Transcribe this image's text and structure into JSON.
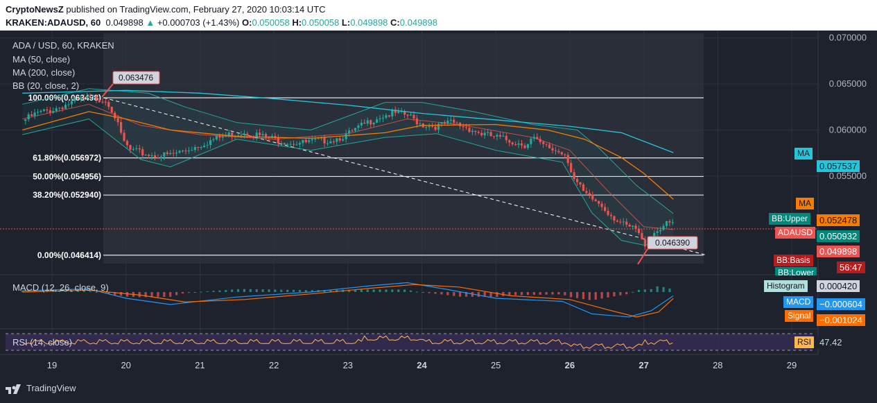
{
  "header": {
    "publisher": "CryptoNewsZ",
    "published_text": "published on TradingView.com, February 27, 2020 10:03:14 UTC",
    "symbol": "KRAKEN:ADAUSD, 60",
    "last": "0.049898",
    "change_arrow": "▲",
    "change": "+0.000703 (+1.43%)",
    "o_label": "O:",
    "o_value": "0.050058",
    "h_label": "H:",
    "h_value": "0.050058",
    "l_label": "L:",
    "l_value": "0.049898",
    "c_label": "C:",
    "c_value": "0.049898"
  },
  "legend": {
    "title": "ADA / USD, 60, KRAKEN",
    "ma50": "MA (50, close)",
    "ma200": "MA (200, close)",
    "bb": "BB (20, close, 2)",
    "macd": "MACD (12, 26, close, 9)",
    "rsi": "RSI (14, close)"
  },
  "price_axis": {
    "ticks": [
      "0.070000",
      "0.065000",
      "0.060000",
      "0.055000"
    ],
    "tick_values": [
      0.07,
      0.065,
      0.06,
      0.055
    ]
  },
  "fib_levels": [
    {
      "label": "100.00%(0.063498)",
      "value": 0.063498
    },
    {
      "label": "61.80%(0.056972)",
      "value": 0.056972
    },
    {
      "label": "50.00%(0.054956)",
      "value": 0.054956
    },
    {
      "label": "38.20%(0.052940)",
      "value": 0.05294
    },
    {
      "label": "0.00%(0.046414)",
      "value": 0.046414
    }
  ],
  "callouts": {
    "high": "0.063476",
    "low": "0.046390"
  },
  "right_tags": {
    "ma200_label": "MA",
    "ma200_value": "0.057537",
    "ma50_label": "MA",
    "ma50_value": "0.052478",
    "bb_upper_label": "BB:Upper",
    "bb_upper_value": "0.050932",
    "adausd_label": "ADAUSD",
    "adausd_value": "0.049898",
    "countdown": "56:47",
    "bb_basis_label": "BB:Basis",
    "bb_lower_label": "BB:Lower",
    "histogram_label": "Histogram",
    "histogram_value": "0.000420",
    "macd_label": "MACD",
    "macd_value": "−0.000604",
    "signal_label": "Signal",
    "signal_value": "−0.001024",
    "rsi_label": "RSI",
    "rsi_value": "47.42"
  },
  "time_axis": {
    "labels": [
      "19",
      "20",
      "21",
      "22",
      "23",
      "24",
      "25",
      "26",
      "27",
      "28",
      "29"
    ],
    "bold": [
      "24",
      "26",
      "27"
    ]
  },
  "footer": {
    "brand": "TradingView"
  },
  "colors": {
    "up": "#26a69a",
    "down": "#ef5350",
    "ma50": "#f57c00",
    "ma200": "#26c6da",
    "bb": "#26a69a",
    "bb_basis": "#ef5350",
    "macd": "#2196f3",
    "signal": "#ff6d00",
    "rsi": "#ffb74d"
  },
  "chart_data": {
    "type": "candlestick",
    "symbol": "ADA / USD",
    "interval": "60",
    "exchange": "KRAKEN",
    "ylim": [
      0.0455,
      0.0705
    ],
    "x_days": [
      19,
      20,
      21,
      22,
      23,
      24,
      25,
      26,
      27,
      28,
      29
    ],
    "close_path": [
      [
        18.6,
        0.061
      ],
      [
        18.8,
        0.0618
      ],
      [
        19.0,
        0.0622
      ],
      [
        19.2,
        0.0628
      ],
      [
        19.4,
        0.0633
      ],
      [
        19.6,
        0.0635
      ],
      [
        19.75,
        0.0632
      ],
      [
        19.85,
        0.0615
      ],
      [
        19.95,
        0.059
      ],
      [
        20.05,
        0.0578
      ],
      [
        20.2,
        0.0575
      ],
      [
        20.4,
        0.0572
      ],
      [
        20.6,
        0.0573
      ],
      [
        20.8,
        0.0578
      ],
      [
        21.0,
        0.0584
      ],
      [
        21.2,
        0.059
      ],
      [
        21.4,
        0.0595
      ],
      [
        21.6,
        0.0598
      ],
      [
        21.8,
        0.0594
      ],
      [
        22.0,
        0.059
      ],
      [
        22.2,
        0.0587
      ],
      [
        22.4,
        0.0586
      ],
      [
        22.6,
        0.0588
      ],
      [
        22.8,
        0.059
      ],
      [
        23.0,
        0.0595
      ],
      [
        23.2,
        0.0605
      ],
      [
        23.4,
        0.0614
      ],
      [
        23.6,
        0.0618
      ],
      [
        23.8,
        0.0616
      ],
      [
        24.0,
        0.0606
      ],
      [
        24.2,
        0.0604
      ],
      [
        24.4,
        0.0608
      ],
      [
        24.6,
        0.0603
      ],
      [
        24.8,
        0.0596
      ],
      [
        25.0,
        0.0592
      ],
      [
        25.2,
        0.0588
      ],
      [
        25.4,
        0.0584
      ],
      [
        25.5,
        0.0592
      ],
      [
        25.6,
        0.0584
      ],
      [
        25.8,
        0.0578
      ],
      [
        25.95,
        0.0574
      ],
      [
        26.05,
        0.0548
      ],
      [
        26.2,
        0.053
      ],
      [
        26.4,
        0.052
      ],
      [
        26.6,
        0.0505
      ],
      [
        26.75,
        0.0495
      ],
      [
        26.9,
        0.0492
      ],
      [
        27.0,
        0.0475
      ],
      [
        27.1,
        0.0486
      ],
      [
        27.25,
        0.0496
      ],
      [
        27.4,
        0.0499
      ]
    ],
    "ma200": [
      [
        18.6,
        0.064
      ],
      [
        20.0,
        0.0643
      ],
      [
        21.0,
        0.064
      ],
      [
        22.0,
        0.0634
      ],
      [
        23.0,
        0.0627
      ],
      [
        24.0,
        0.0618
      ],
      [
        25.0,
        0.0611
      ],
      [
        26.0,
        0.0604
      ],
      [
        26.7,
        0.0597
      ],
      [
        27.4,
        0.05754
      ]
    ],
    "ma50": [
      [
        18.6,
        0.06
      ],
      [
        19.5,
        0.062
      ],
      [
        20.0,
        0.0612
      ],
      [
        20.6,
        0.06
      ],
      [
        21.5,
        0.0593
      ],
      [
        22.5,
        0.0591
      ],
      [
        23.5,
        0.0597
      ],
      [
        24.0,
        0.0605
      ],
      [
        25.0,
        0.0606
      ],
      [
        25.7,
        0.06
      ],
      [
        26.2,
        0.059
      ],
      [
        26.7,
        0.057
      ],
      [
        27.0,
        0.0553
      ],
      [
        27.4,
        0.05248
      ]
    ],
    "bb_upper": [
      [
        18.6,
        0.0628
      ],
      [
        19.5,
        0.0645
      ],
      [
        20.3,
        0.064
      ],
      [
        20.8,
        0.0625
      ],
      [
        21.5,
        0.0608
      ],
      [
        22.5,
        0.06
      ],
      [
        23.5,
        0.063
      ],
      [
        24.0,
        0.063
      ],
      [
        24.7,
        0.062
      ],
      [
        25.5,
        0.0606
      ],
      [
        26.1,
        0.06
      ],
      [
        26.4,
        0.058
      ],
      [
        26.9,
        0.054
      ],
      [
        27.4,
        0.05093
      ]
    ],
    "bb_lower": [
      [
        18.6,
        0.0595
      ],
      [
        19.5,
        0.0612
      ],
      [
        20.2,
        0.0568
      ],
      [
        20.6,
        0.056
      ],
      [
        21.5,
        0.059
      ],
      [
        22.5,
        0.0578
      ],
      [
        23.5,
        0.0592
      ],
      [
        24.2,
        0.0596
      ],
      [
        25.0,
        0.0578
      ],
      [
        25.9,
        0.0565
      ],
      [
        26.3,
        0.051
      ],
      [
        26.7,
        0.048
      ],
      [
        27.0,
        0.0475
      ],
      [
        27.4,
        0.048
      ]
    ],
    "bb_basis": [
      [
        18.6,
        0.0612
      ],
      [
        19.5,
        0.0628
      ],
      [
        20.2,
        0.0605
      ],
      [
        21.0,
        0.0595
      ],
      [
        22.0,
        0.059
      ],
      [
        23.0,
        0.0596
      ],
      [
        23.8,
        0.0612
      ],
      [
        24.5,
        0.0606
      ],
      [
        25.5,
        0.0592
      ],
      [
        26.0,
        0.0578
      ],
      [
        26.5,
        0.0535
      ],
      [
        27.0,
        0.0495
      ],
      [
        27.4,
        0.0492
      ]
    ],
    "trendline": [
      [
        19.7,
        0.063498
      ],
      [
        27.85,
        0.046414
      ]
    ],
    "macd": [
      [
        18.6,
        0.0002
      ],
      [
        19.5,
        0.0005
      ],
      [
        20.0,
        -0.001
      ],
      [
        20.6,
        -0.002
      ],
      [
        21.5,
        -0.0008
      ],
      [
        22.5,
        0.0
      ],
      [
        23.3,
        0.001
      ],
      [
        23.8,
        0.0015
      ],
      [
        24.3,
        0.0005
      ],
      [
        25.0,
        -0.001
      ],
      [
        25.9,
        -0.0015
      ],
      [
        26.3,
        -0.0035
      ],
      [
        26.8,
        -0.004
      ],
      [
        27.1,
        -0.003
      ],
      [
        27.4,
        -0.000604
      ]
    ],
    "signal": [
      [
        18.6,
        0.0
      ],
      [
        19.5,
        0.0003
      ],
      [
        20.2,
        -0.0005
      ],
      [
        20.8,
        -0.0016
      ],
      [
        21.6,
        -0.0012
      ],
      [
        22.5,
        -0.0003
      ],
      [
        23.3,
        0.0006
      ],
      [
        23.9,
        0.0012
      ],
      [
        24.5,
        0.0008
      ],
      [
        25.2,
        -0.0006
      ],
      [
        26.0,
        -0.0012
      ],
      [
        26.5,
        -0.0028
      ],
      [
        26.9,
        -0.004
      ],
      [
        27.2,
        -0.0032
      ],
      [
        27.4,
        -0.001024
      ]
    ],
    "rsi_value": 47.42,
    "rsi_bands": [
      30,
      70
    ]
  }
}
